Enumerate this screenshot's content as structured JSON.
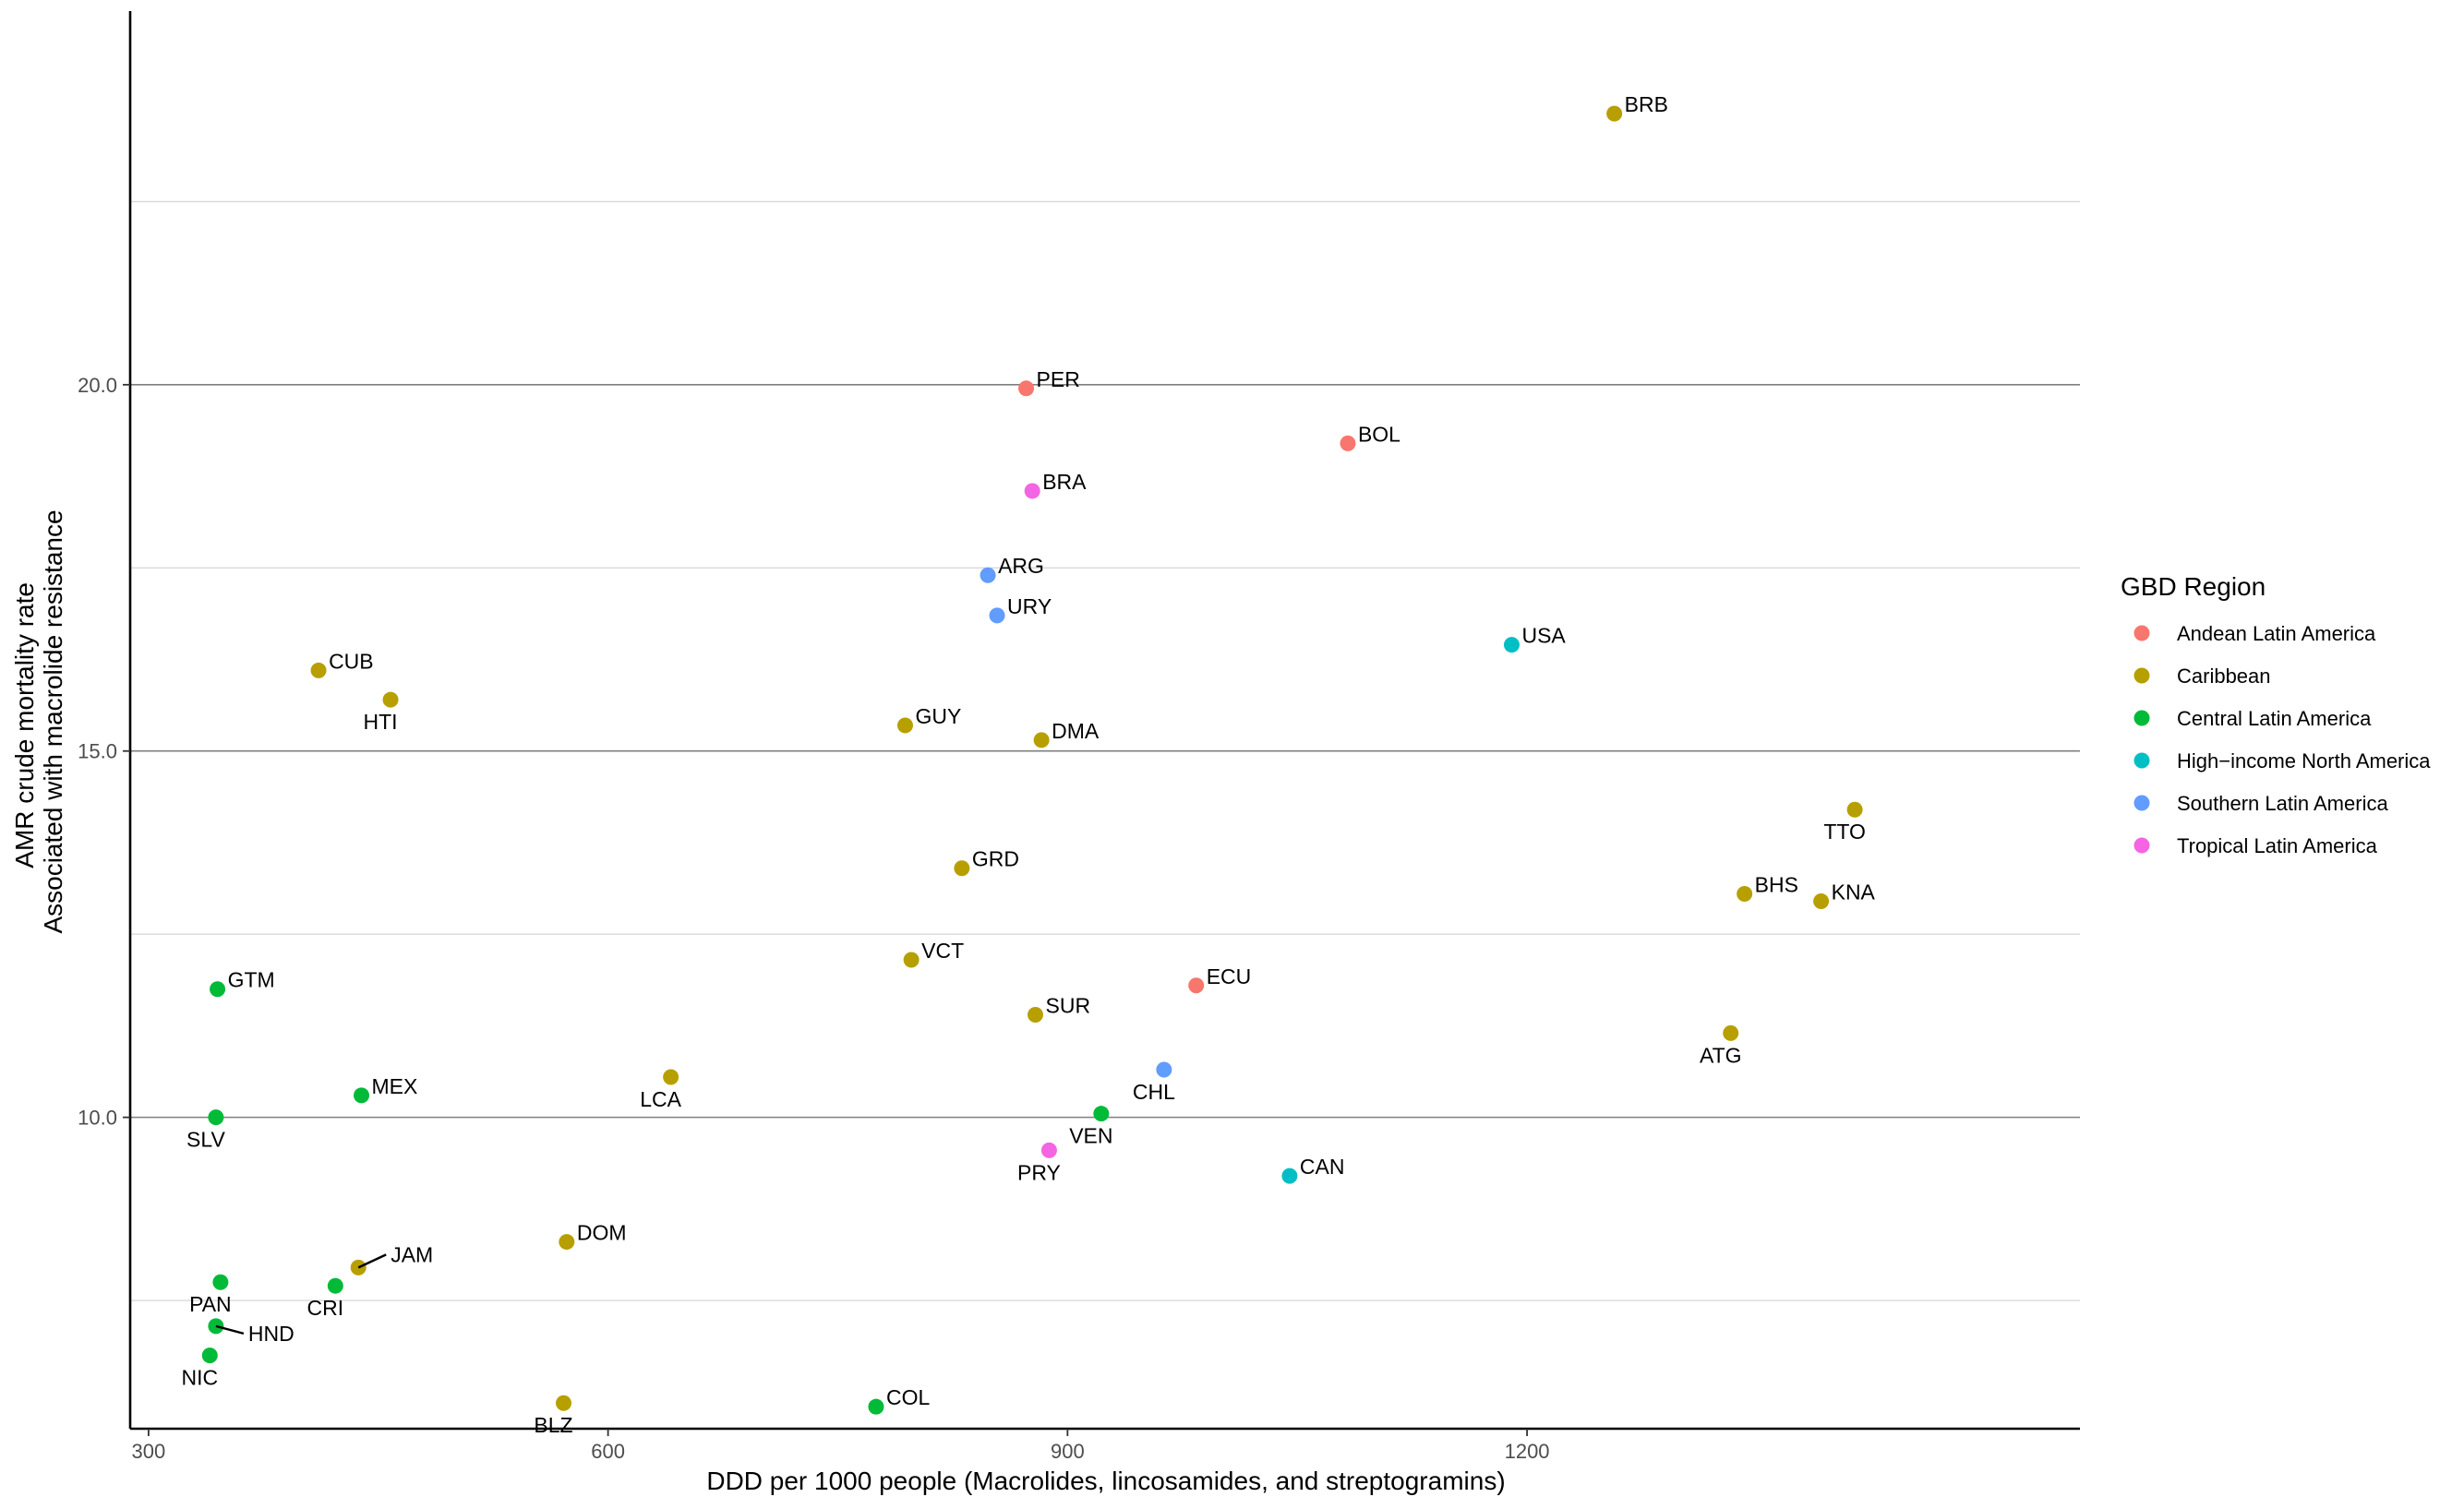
{
  "chart_data": {
    "type": "scatter",
    "title": "",
    "xlabel": "DDD per 1000 people (Macrolides, lincosamides, and streptogramins)",
    "ylabel": [
      "AMR crude mortality rate",
      "Associated with macrolide resistance"
    ],
    "xlim": [
      288,
      1561
    ],
    "ylim": [
      5.75,
      25.1
    ],
    "x_ticks": [
      300,
      600,
      900,
      1200
    ],
    "x_tick_labels": [
      "300",
      "600",
      "900",
      "1200"
    ],
    "y_ticks": [
      10.0,
      15.0,
      20.0
    ],
    "y_tick_labels": [
      "10.0",
      "15.0",
      "20.0"
    ],
    "y_minor_grid": [
      7.5,
      12.5,
      17.5,
      22.5
    ],
    "grid": true,
    "legend": {
      "title": "GBD Region",
      "placement": "right",
      "entries": [
        {
          "name": "Andean Latin America",
          "color": "#F8766D"
        },
        {
          "name": "Caribbean",
          "color": "#B79F00"
        },
        {
          "name": "Central Latin America",
          "color": "#00BA38"
        },
        {
          "name": "High−income North America",
          "color": "#00BFC4"
        },
        {
          "name": "Southern Latin America",
          "color": "#619CFF"
        },
        {
          "name": "Tropical Latin America",
          "color": "#F564E3"
        }
      ]
    },
    "points": [
      {
        "label": "BRB",
        "x": 1257,
        "y": 23.7,
        "region": "Caribbean",
        "label_pos": "right"
      },
      {
        "label": "PER",
        "x": 873,
        "y": 19.95,
        "region": "Andean Latin America",
        "label_pos": "right"
      },
      {
        "label": "BOL",
        "x": 1083,
        "y": 19.2,
        "region": "Andean Latin America",
        "label_pos": "right"
      },
      {
        "label": "BRA",
        "x": 877,
        "y": 18.55,
        "region": "Tropical Latin America",
        "label_pos": "right"
      },
      {
        "label": "ARG",
        "x": 848,
        "y": 17.4,
        "region": "Southern Latin America",
        "label_pos": "right"
      },
      {
        "label": "URY",
        "x": 854,
        "y": 16.85,
        "region": "Southern Latin America",
        "label_pos": "right"
      },
      {
        "label": "USA",
        "x": 1190,
        "y": 16.45,
        "region": "High−income North America",
        "label_pos": "right"
      },
      {
        "label": "CUB",
        "x": 411,
        "y": 16.1,
        "region": "Caribbean",
        "label_pos": "right"
      },
      {
        "label": "HTI",
        "x": 458,
        "y": 15.7,
        "region": "Caribbean",
        "label_pos": "below"
      },
      {
        "label": "GUY",
        "x": 794,
        "y": 15.35,
        "region": "Caribbean",
        "label_pos": "right"
      },
      {
        "label": "DMA",
        "x": 883,
        "y": 15.15,
        "region": "Caribbean",
        "label_pos": "right"
      },
      {
        "label": "TTO",
        "x": 1414,
        "y": 14.2,
        "region": "Caribbean",
        "label_pos": "below"
      },
      {
        "label": "GRD",
        "x": 831,
        "y": 13.4,
        "region": "Caribbean",
        "label_pos": "right"
      },
      {
        "label": "BHS",
        "x": 1342,
        "y": 13.05,
        "region": "Caribbean",
        "label_pos": "right"
      },
      {
        "label": "KNA",
        "x": 1392,
        "y": 12.95,
        "region": "Caribbean",
        "label_pos": "right"
      },
      {
        "label": "VCT",
        "x": 798,
        "y": 12.15,
        "region": "Caribbean",
        "label_pos": "right"
      },
      {
        "label": "GTM",
        "x": 345,
        "y": 11.75,
        "region": "Central Latin America",
        "label_pos": "right"
      },
      {
        "label": "ECU",
        "x": 984,
        "y": 11.8,
        "region": "Andean Latin America",
        "label_pos": "right"
      },
      {
        "label": "SUR",
        "x": 879,
        "y": 11.4,
        "region": "Caribbean",
        "label_pos": "right"
      },
      {
        "label": "ATG",
        "x": 1333,
        "y": 11.15,
        "region": "Caribbean",
        "label_pos": "below"
      },
      {
        "label": "CHL",
        "x": 963,
        "y": 10.65,
        "region": "Southern Latin America",
        "label_pos": "below"
      },
      {
        "label": "LCA",
        "x": 641,
        "y": 10.55,
        "region": "Caribbean",
        "label_pos": "below"
      },
      {
        "label": "MEX",
        "x": 439,
        "y": 10.3,
        "region": "Central Latin America",
        "label_pos": "right"
      },
      {
        "label": "SLV",
        "x": 344,
        "y": 10.0,
        "region": "Central Latin America",
        "label_pos": "below"
      },
      {
        "label": "VEN",
        "x": 922,
        "y": 10.05,
        "region": "Central Latin America",
        "label_pos": "below"
      },
      {
        "label": "PRY",
        "x": 888,
        "y": 9.55,
        "region": "Tropical Latin America",
        "label_pos": "below"
      },
      {
        "label": "CAN",
        "x": 1045,
        "y": 9.2,
        "region": "High−income North America",
        "label_pos": "right"
      },
      {
        "label": "DOM",
        "x": 573,
        "y": 8.3,
        "region": "Caribbean",
        "label_pos": "right"
      },
      {
        "label": "JAM",
        "x": 437,
        "y": 7.95,
        "region": "Caribbean",
        "label_pos": "leader"
      },
      {
        "label": "PAN",
        "x": 347,
        "y": 7.75,
        "region": "Central Latin America",
        "label_pos": "below"
      },
      {
        "label": "CRI",
        "x": 422,
        "y": 7.7,
        "region": "Central Latin America",
        "label_pos": "below"
      },
      {
        "label": "HND",
        "x": 344,
        "y": 7.15,
        "region": "Central Latin America",
        "label_pos": "leader"
      },
      {
        "label": "NIC",
        "x": 340,
        "y": 6.75,
        "region": "Central Latin America",
        "label_pos": "below"
      },
      {
        "label": "BLZ",
        "x": 571,
        "y": 6.1,
        "region": "Caribbean",
        "label_pos": "below"
      },
      {
        "label": "COL",
        "x": 775,
        "y": 6.05,
        "region": "Central Latin America",
        "label_pos": "right"
      }
    ]
  }
}
